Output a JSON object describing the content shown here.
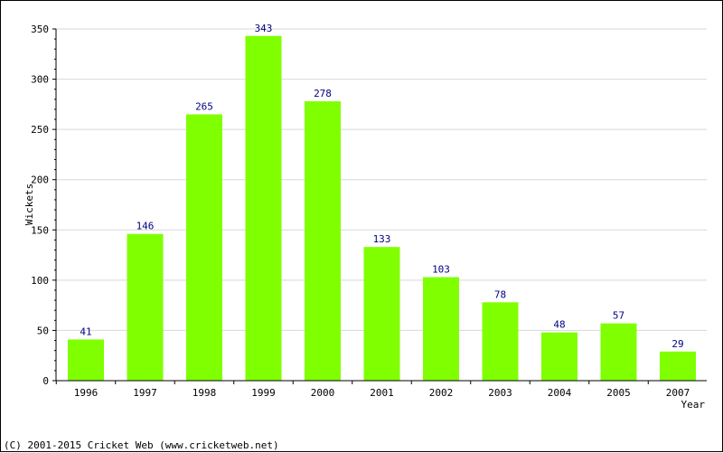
{
  "chart_data": {
    "type": "bar",
    "categories": [
      "1996",
      "1997",
      "1998",
      "1999",
      "2000",
      "2001",
      "2002",
      "2003",
      "2004",
      "2005",
      "2007"
    ],
    "values": [
      41,
      146,
      265,
      343,
      278,
      133,
      103,
      78,
      48,
      57,
      29
    ],
    "xlabel": "Year",
    "ylabel": "Wickets",
    "ylim": [
      0,
      350
    ],
    "yticks": [
      0,
      50,
      100,
      150,
      200,
      250,
      300,
      350
    ],
    "grid": true,
    "data_labels": true
  },
  "colors": {
    "bar": "#80ff00",
    "data_label": "#000080",
    "grid": "#d8d8d8"
  },
  "footer": "(C) 2001-2015 Cricket Web (www.cricketweb.net)"
}
